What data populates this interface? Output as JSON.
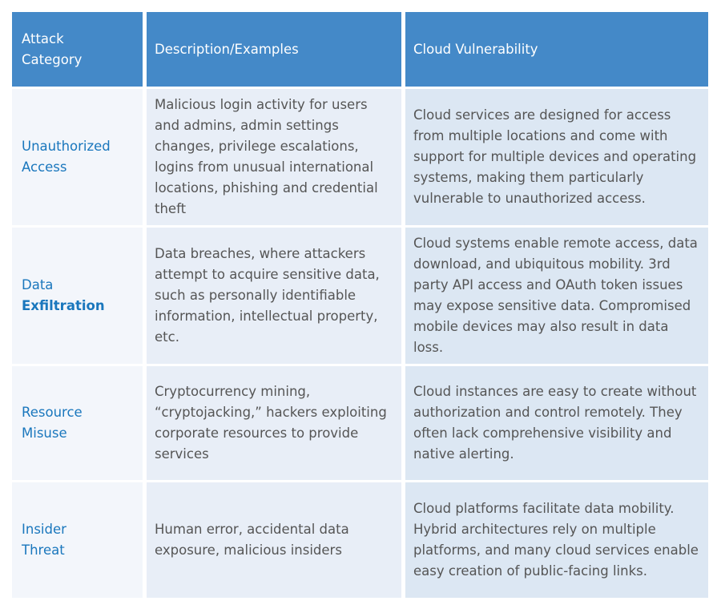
{
  "headers": [
    "Attack\nCategory",
    "Description/Examples",
    "Cloud Vulnerability"
  ],
  "rows": [
    {
      "category": "Unauthorized Access",
      "description": "Malicious login activity for users and admins, admin settings changes, privilege escalations, logins from unusual international locations, phishing and credential theft",
      "vulnerability": "Cloud services are designed for access from multiple locations and come with support for multiple devices and operating systems, making them particularly vulnerable to unauthorized access."
    },
    {
      "category": "Data",
      "category_bold": "Exfiltration",
      "description": "Data breaches, where attackers attempt to acquire sensitive data, such as personally identifiable information, intellectual property, etc.",
      "vulnerability": "Cloud systems enable remote access, data download, and ubiquitous mobility. 3rd party API access and OAuth token issues may expose sensitive data. Compromised mobile devices may also result in data loss."
    },
    {
      "category": "Resource Misuse",
      "description": "Cryptocurrency mining, “cryptojacking,” hackers exploiting corporate resources to provide services",
      "vulnerability": "Cloud instances are easy to create without authorization and control remotely. They often lack comprehensive visibility and native alerting."
    },
    {
      "category": "Insider Threat",
      "description": "Human error, accidental data exposure, malicious insiders",
      "vulnerability": "Cloud platforms facilitate data mobility. Hybrid architectures rely on multiple platforms, and many cloud services enable easy creation of public-facing links."
    }
  ],
  "colors": {
    "header": "#4489c8",
    "category_text": "#1a77bd",
    "body_text": "#555555"
  }
}
